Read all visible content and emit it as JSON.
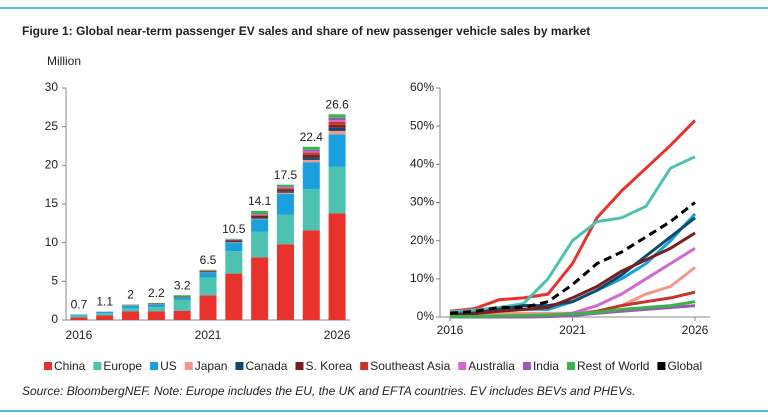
{
  "title": "Figure 1: Global near-term passenger EV sales and share of new passenger vehicle sales by market",
  "source": "Source: BloombergNEF. Note: Europe includes the EU, the UK and EFTA countries. EV includes BEVs and PHEVs.",
  "chart_data": [
    {
      "type": "stacked-bar",
      "y_label": "Million",
      "categories": [
        "2016",
        null,
        null,
        null,
        null,
        "2021",
        null,
        null,
        null,
        null,
        "2026"
      ],
      "ylim": [
        0,
        30
      ],
      "yticks": [
        0,
        5,
        10,
        15,
        20,
        25,
        30
      ],
      "totals": [
        0.7,
        1.1,
        2.0,
        2.2,
        3.2,
        6.5,
        10.5,
        14.1,
        17.5,
        22.4,
        26.6
      ],
      "series": [
        {
          "color": "#e8322b",
          "values": [
            0.34,
            0.58,
            1.1,
            1.1,
            1.2,
            3.2,
            6.0,
            8.1,
            9.8,
            11.6,
            13.8
          ]
        },
        {
          "color": "#4fc1b1",
          "values": [
            0.21,
            0.3,
            0.4,
            0.56,
            1.4,
            2.3,
            2.9,
            3.3,
            3.8,
            5.3,
            6.0
          ]
        },
        {
          "color": "#1aa0dc",
          "values": [
            0.16,
            0.2,
            0.36,
            0.33,
            0.3,
            0.6,
            1.1,
            1.6,
            2.7,
            3.5,
            4.2
          ]
        },
        {
          "color": "#f4978a",
          "values": [
            0,
            0.02,
            0.05,
            0.04,
            0.03,
            0.05,
            0.05,
            0.1,
            0.15,
            0.3,
            0.45
          ]
        },
        {
          "color": "#0e4a6b",
          "values": [
            0,
            0,
            0.04,
            0.05,
            0.05,
            0.08,
            0.1,
            0.15,
            0.2,
            0.3,
            0.4
          ]
        },
        {
          "color": "#7a1f1f",
          "values": [
            0,
            0,
            0.03,
            0.04,
            0.05,
            0.1,
            0.15,
            0.2,
            0.25,
            0.35,
            0.4
          ]
        },
        {
          "color": "#c4342c",
          "values": [
            0,
            0,
            0,
            0,
            0,
            0.02,
            0.05,
            0.1,
            0.15,
            0.3,
            0.4
          ]
        },
        {
          "color": "#d06ad0",
          "values": [
            0,
            0,
            0,
            0,
            0,
            0.02,
            0.04,
            0.08,
            0.1,
            0.15,
            0.2
          ]
        },
        {
          "color": "#9b59b6",
          "values": [
            0,
            0,
            0,
            0,
            0,
            0.01,
            0.03,
            0.07,
            0.1,
            0.2,
            0.3
          ]
        },
        {
          "color": "#3cb34a",
          "values": [
            0,
            0,
            0.02,
            0.08,
            0.17,
            0.12,
            0.08,
            0.4,
            0.25,
            0.4,
            0.45
          ]
        }
      ]
    },
    {
      "type": "line",
      "x": [
        2016,
        2017,
        2018,
        2019,
        2020,
        2021,
        2022,
        2023,
        2024,
        2025,
        2026
      ],
      "xlim": [
        2016,
        2026
      ],
      "xticks": [
        2016,
        2021,
        2026
      ],
      "ylim": [
        0,
        60
      ],
      "yticks": [
        {
          "value": 0,
          "label": "0%"
        },
        {
          "value": 10,
          "label": "10%"
        },
        {
          "value": 20,
          "label": "20%"
        },
        {
          "value": 30,
          "label": "30%"
        },
        {
          "value": 40,
          "label": "40%"
        },
        {
          "value": 50,
          "label": "50%"
        },
        {
          "value": 60,
          "label": "60%"
        }
      ],
      "series": [
        {
          "name": "China",
          "color": "#e8322b",
          "values": [
            1.5,
            2.2,
            4.5,
            5,
            6,
            14,
            26,
            33,
            39,
            45,
            51.5
          ]
        },
        {
          "name": "Europe",
          "color": "#4fc1b1",
          "values": [
            1.3,
            1.8,
            2.5,
            3.5,
            10,
            20,
            25,
            26,
            29,
            39,
            42
          ]
        },
        {
          "name": "US",
          "color": "#1aa0dc",
          "values": [
            1,
            1.2,
            2,
            2,
            2,
            4,
            7,
            10,
            14,
            20,
            27
          ]
        },
        {
          "name": "Japan",
          "color": "#f4978a",
          "values": [
            0.7,
            0.8,
            1,
            1,
            1,
            1,
            1.5,
            3,
            6,
            8,
            13
          ]
        },
        {
          "name": "Canada",
          "color": "#0e4a6b",
          "values": [
            0.6,
            1,
            2,
            3,
            3,
            4,
            7,
            11,
            16,
            21,
            26
          ]
        },
        {
          "name": "S. Korea",
          "color": "#7a1f1f",
          "values": [
            0.4,
            0.9,
            1.5,
            2,
            2.5,
            5,
            8,
            12,
            15,
            18,
            22
          ]
        },
        {
          "name": "Southeast Asia",
          "color": "#c4342c",
          "values": [
            0,
            0,
            0.1,
            0.1,
            0.2,
            0.5,
            1.5,
            3,
            4,
            5,
            6.5
          ]
        },
        {
          "name": "Australia",
          "color": "#d06ad0",
          "values": [
            0.1,
            0.1,
            0.2,
            0.3,
            0.5,
            1,
            3,
            6,
            10,
            14,
            18
          ]
        },
        {
          "name": "India",
          "color": "#9b59b6",
          "values": [
            0,
            0,
            0,
            0,
            0.1,
            0.4,
            1,
            1.5,
            2,
            2.5,
            3
          ]
        },
        {
          "name": "Rest of World",
          "color": "#3cb34a",
          "values": [
            0.1,
            0.1,
            0.3,
            0.4,
            0.5,
            0.8,
            1.2,
            2,
            2.5,
            3,
            4
          ]
        },
        {
          "name": "Global",
          "color": "#000000",
          "dashed": true,
          "values": [
            1,
            1.5,
            2.5,
            2.5,
            4,
            8.5,
            14,
            17,
            21,
            25,
            30
          ]
        }
      ]
    }
  ]
}
